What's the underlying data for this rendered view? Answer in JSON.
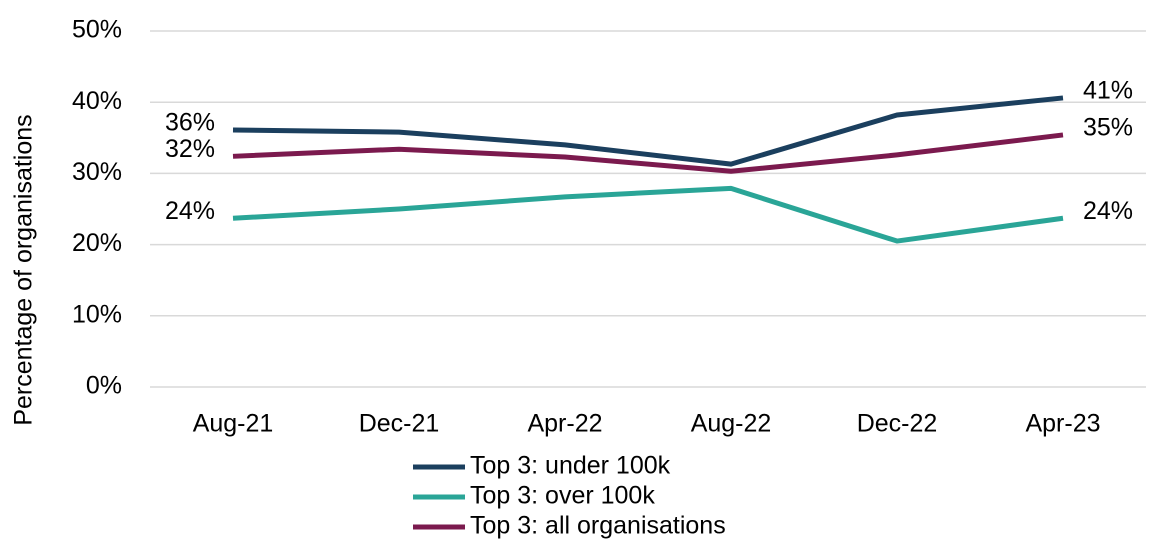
{
  "chart_data": {
    "type": "line",
    "y_label": "Percentage of organisations",
    "categories": [
      "Aug-21",
      "Dec-21",
      "Apr-22",
      "Aug-22",
      "Dec-22",
      "Apr-23"
    ],
    "series": [
      {
        "name": "Top 3: under 100k",
        "color": "#1b3f5e",
        "values": [
          36.1,
          35.8,
          34.0,
          31.3,
          38.2,
          40.6
        ],
        "value_labels": [
          "36%",
          null,
          null,
          null,
          null,
          "41%"
        ]
      },
      {
        "name": "Top 3: over 100k",
        "color": "#2aa597",
        "values": [
          23.7,
          25.0,
          26.7,
          27.9,
          20.5,
          23.7
        ],
        "value_labels": [
          "24%",
          null,
          null,
          null,
          null,
          "24%"
        ]
      },
      {
        "name": "Top 3: all organisations",
        "color": "#7b1a4e",
        "values": [
          32.4,
          33.4,
          32.3,
          30.3,
          32.6,
          35.4
        ],
        "value_labels": [
          "32%",
          null,
          null,
          null,
          null,
          "35%"
        ]
      }
    ],
    "ylim": [
      0,
      50
    ],
    "yticks": [
      {
        "value": 0,
        "label": "0%"
      },
      {
        "value": 10,
        "label": "10%"
      },
      {
        "value": 20,
        "label": "20%"
      },
      {
        "value": 30,
        "label": "30%"
      },
      {
        "value": 40,
        "label": "40%"
      },
      {
        "value": 50,
        "label": "50%"
      }
    ],
    "grid": true
  }
}
